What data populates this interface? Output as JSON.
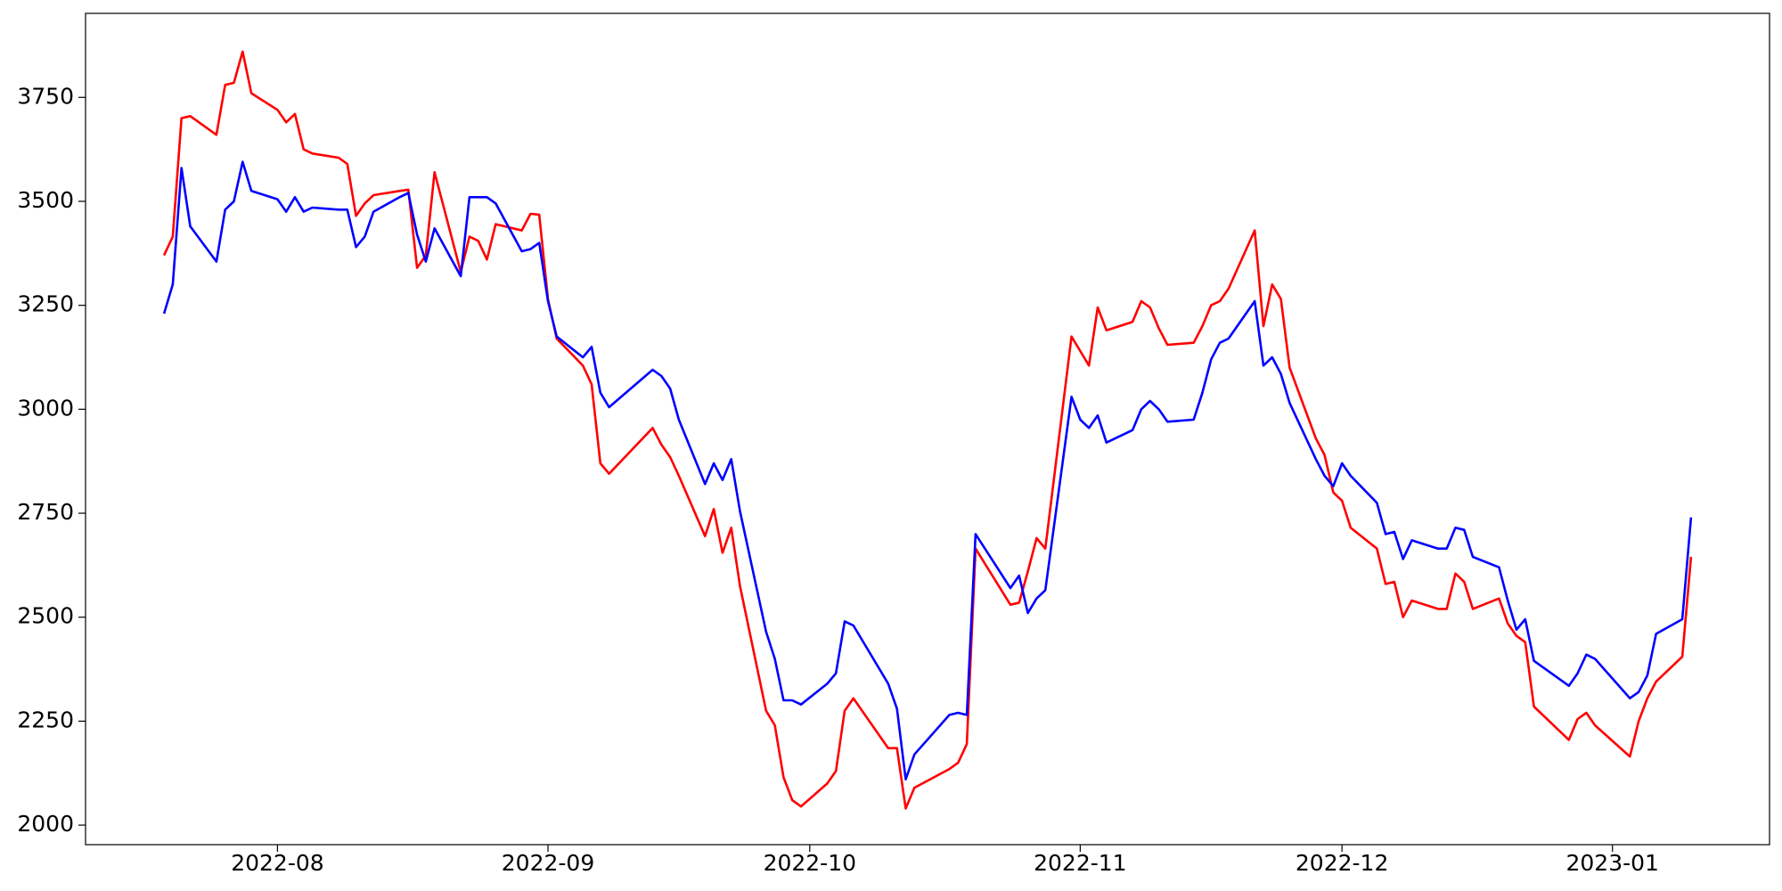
{
  "chart_data": {
    "type": "line",
    "x": [
      "2022-07-19",
      "2022-07-20",
      "2022-07-21",
      "2022-07-22",
      "2022-07-25",
      "2022-07-26",
      "2022-07-27",
      "2022-07-28",
      "2022-07-29",
      "2022-08-01",
      "2022-08-02",
      "2022-08-03",
      "2022-08-04",
      "2022-08-05",
      "2022-08-08",
      "2022-08-09",
      "2022-08-10",
      "2022-08-11",
      "2022-08-12",
      "2022-08-15",
      "2022-08-16",
      "2022-08-17",
      "2022-08-18",
      "2022-08-19",
      "2022-08-22",
      "2022-08-23",
      "2022-08-24",
      "2022-08-25",
      "2022-08-26",
      "2022-08-29",
      "2022-08-30",
      "2022-08-31",
      "2022-09-01",
      "2022-09-02",
      "2022-09-05",
      "2022-09-06",
      "2022-09-07",
      "2022-09-08",
      "2022-09-13",
      "2022-09-14",
      "2022-09-15",
      "2022-09-16",
      "2022-09-19",
      "2022-09-20",
      "2022-09-21",
      "2022-09-22",
      "2022-09-23",
      "2022-09-26",
      "2022-09-27",
      "2022-09-28",
      "2022-09-29",
      "2022-09-30",
      "2022-10-03",
      "2022-10-04",
      "2022-10-05",
      "2022-10-06",
      "2022-10-10",
      "2022-10-11",
      "2022-10-12",
      "2022-10-13",
      "2022-10-17",
      "2022-10-18",
      "2022-10-19",
      "2022-10-20",
      "2022-10-24",
      "2022-10-25",
      "2022-10-26",
      "2022-10-27",
      "2022-10-28",
      "2022-10-31",
      "2022-11-01",
      "2022-11-02",
      "2022-11-03",
      "2022-11-04",
      "2022-11-07",
      "2022-11-08",
      "2022-11-09",
      "2022-11-10",
      "2022-11-11",
      "2022-11-14",
      "2022-11-15",
      "2022-11-16",
      "2022-11-17",
      "2022-11-18",
      "2022-11-21",
      "2022-11-22",
      "2022-11-23",
      "2022-11-24",
      "2022-11-25",
      "2022-11-28",
      "2022-11-29",
      "2022-11-30",
      "2022-12-01",
      "2022-12-02",
      "2022-12-05",
      "2022-12-06",
      "2022-12-07",
      "2022-12-08",
      "2022-12-09",
      "2022-12-12",
      "2022-12-13",
      "2022-12-14",
      "2022-12-15",
      "2022-12-16",
      "2022-12-19",
      "2022-12-20",
      "2022-12-21",
      "2022-12-22",
      "2022-12-23",
      "2022-12-27",
      "2022-12-28",
      "2022-12-29",
      "2022-12-30",
      "2023-01-03",
      "2023-01-04",
      "2023-01-05",
      "2023-01-06",
      "2023-01-09",
      "2023-01-10"
    ],
    "series": [
      {
        "color": "#ff0000",
        "values": [
          3370,
          3415,
          3700,
          3705,
          3660,
          3780,
          3785,
          3860,
          3760,
          3720,
          3690,
          3710,
          3625,
          3615,
          3605,
          3590,
          3465,
          3495,
          3515,
          3525,
          3528,
          3340,
          3370,
          3570,
          3330,
          3415,
          3405,
          3360,
          3445,
          3430,
          3470,
          3468,
          3265,
          3170,
          3105,
          3060,
          2870,
          2845,
          2955,
          2915,
          2885,
          2840,
          2695,
          2760,
          2655,
          2715,
          2575,
          2275,
          2240,
          2115,
          2060,
          2045,
          2100,
          2130,
          2275,
          2305,
          2185,
          2185,
          2040,
          2090,
          2135,
          2150,
          2195,
          2665,
          2530,
          2535,
          2610,
          2690,
          2665,
          3175,
          3140,
          3105,
          3245,
          3190,
          3210,
          3260,
          3245,
          3195,
          3155,
          3160,
          3200,
          3250,
          3260,
          3290,
          3430,
          3200,
          3300,
          3265,
          3100,
          2930,
          2890,
          2800,
          2780,
          2715,
          2665,
          2580,
          2585,
          2500,
          2540,
          2520,
          2520,
          2605,
          2585,
          2520,
          2545,
          2485,
          2455,
          2440,
          2285,
          2205,
          2255,
          2270,
          2240,
          2165,
          2250,
          2305,
          2345,
          2405,
          2645
        ]
      },
      {
        "color": "#0000ff",
        "values": [
          3230,
          3300,
          3580,
          3440,
          3355,
          3480,
          3500,
          3595,
          3525,
          3505,
          3475,
          3510,
          3475,
          3485,
          3480,
          3480,
          3390,
          3415,
          3475,
          3510,
          3520,
          3420,
          3355,
          3435,
          3320,
          3510,
          3510,
          3510,
          3495,
          3380,
          3385,
          3400,
          3260,
          3175,
          3125,
          3150,
          3040,
          3005,
          3095,
          3080,
          3050,
          2975,
          2820,
          2870,
          2830,
          2880,
          2755,
          2465,
          2400,
          2300,
          2300,
          2290,
          2340,
          2365,
          2490,
          2480,
          2340,
          2280,
          2110,
          2170,
          2265,
          2270,
          2265,
          2700,
          2570,
          2600,
          2510,
          2545,
          2565,
          3030,
          2975,
          2955,
          2985,
          2920,
          2950,
          3000,
          3020,
          3000,
          2970,
          2975,
          3040,
          3120,
          3160,
          3170,
          3260,
          3105,
          3125,
          3085,
          3015,
          2880,
          2840,
          2815,
          2870,
          2840,
          2775,
          2700,
          2705,
          2640,
          2685,
          2665,
          2665,
          2715,
          2710,
          2645,
          2620,
          2540,
          2470,
          2495,
          2395,
          2335,
          2365,
          2410,
          2400,
          2305,
          2320,
          2360,
          2460,
          2495,
          2740
        ]
      }
    ],
    "xlim": [
      "2022-07-10",
      "2023-01-19"
    ],
    "xticks": [
      {
        "value": "2022-08-01",
        "label": "2022-08"
      },
      {
        "value": "2022-09-01",
        "label": "2022-09"
      },
      {
        "value": "2022-10-01",
        "label": "2022-10"
      },
      {
        "value": "2022-11-01",
        "label": "2022-11"
      },
      {
        "value": "2022-12-01",
        "label": "2022-12"
      },
      {
        "value": "2023-01-01",
        "label": "2023-01"
      }
    ],
    "ylim": [
      1953,
      3952
    ],
    "yticks": [
      2000,
      2250,
      2500,
      2750,
      3000,
      3250,
      3500,
      3750
    ]
  }
}
